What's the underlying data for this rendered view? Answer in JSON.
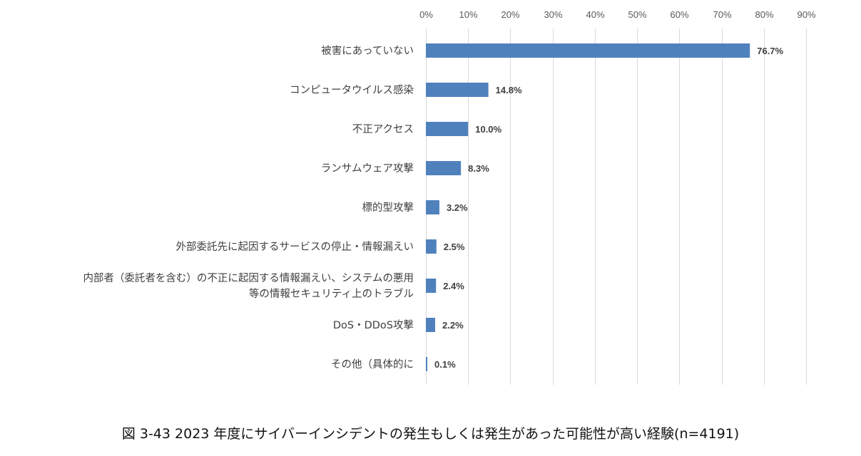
{
  "chart_data": {
    "type": "bar",
    "orientation": "horizontal",
    "categories": [
      [
        "被害にあっていない"
      ],
      [
        "コンピュータウイルス感染"
      ],
      [
        "不正アクセス"
      ],
      [
        "ランサムウェア攻撃"
      ],
      [
        "標的型攻撃"
      ],
      [
        "外部委託先に起因するサービスの停止・情報漏えい"
      ],
      [
        "内部者（委託者を含む）の不正に起因する情報漏えい、システムの悪用",
        "等の情報セキュリティ上のトラブル"
      ],
      [
        "DoS・DDoS攻撃"
      ],
      [
        "その他（具体的に"
      ]
    ],
    "values": [
      76.7,
      14.8,
      10.0,
      8.3,
      3.2,
      2.5,
      2.4,
      2.2,
      0.1
    ],
    "value_labels": [
      "76.7%",
      "14.8%",
      "10.0%",
      "8.3%",
      "3.2%",
      "2.5%",
      "2.4%",
      "2.2%",
      "0.1%"
    ],
    "xlim": [
      0,
      90
    ],
    "x_ticks": [
      0,
      10,
      20,
      30,
      40,
      50,
      60,
      70,
      80,
      90
    ],
    "x_tick_labels": [
      "0%",
      "10%",
      "20%",
      "30%",
      "40%",
      "50%",
      "60%",
      "70%",
      "80%",
      "90%"
    ],
    "x_axis_position": "top",
    "grid": true,
    "bar_color": "#4f81bd",
    "grid_color": "#d9d9d9",
    "title": ""
  },
  "caption": "図  3-43   2023 年度にサイバーインシデントの発生もしくは発生があった可能性が高い経験(n=4191)"
}
